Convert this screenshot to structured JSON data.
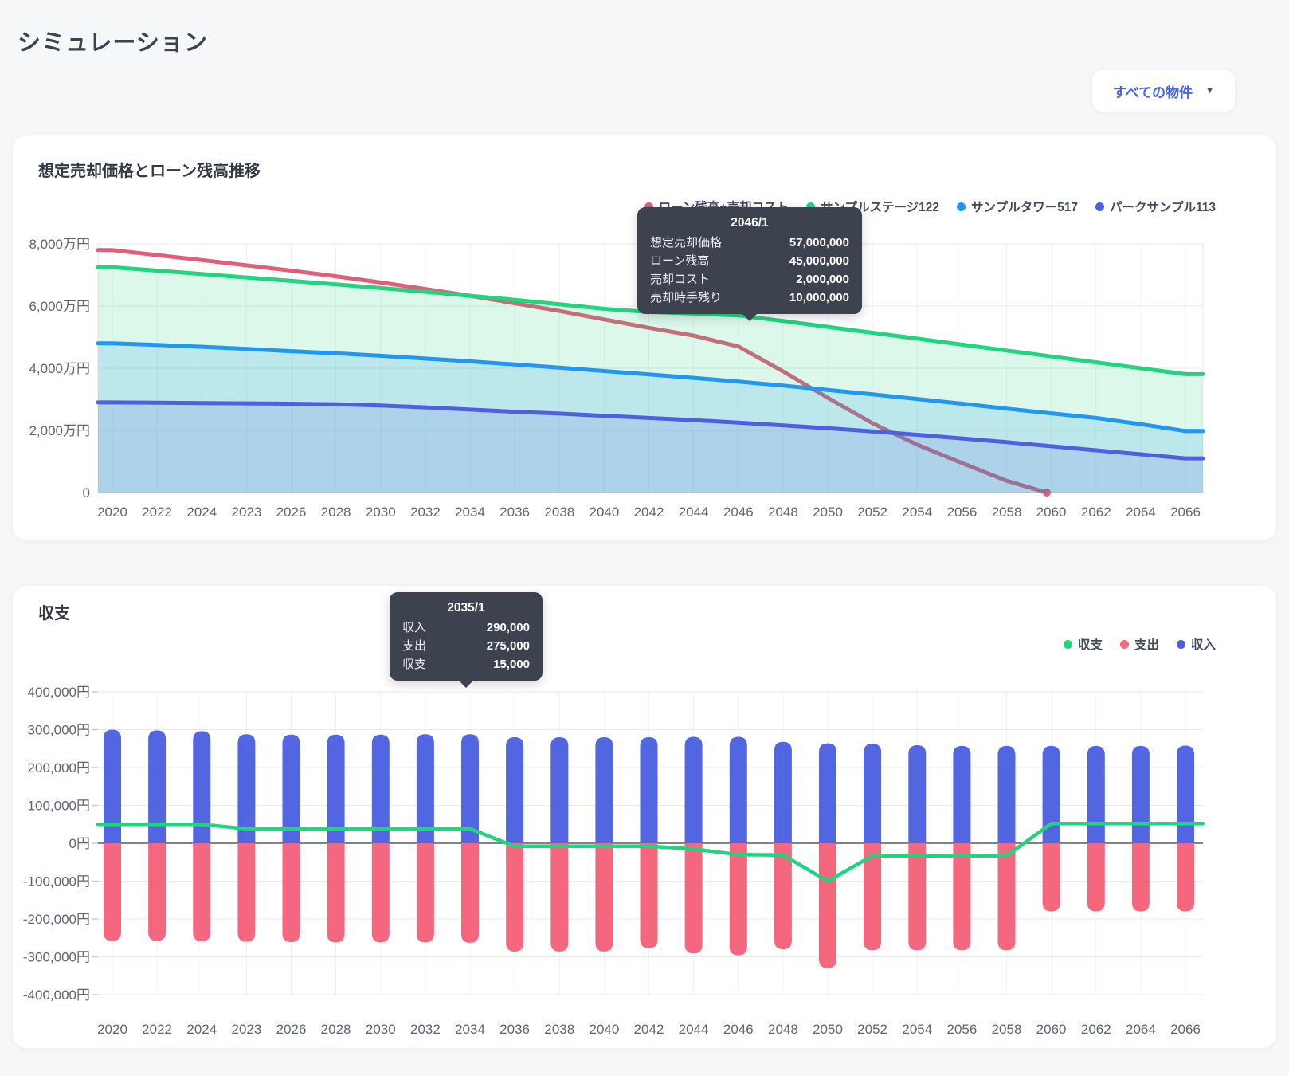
{
  "page": {
    "title": "シミュレーション"
  },
  "property_filter": {
    "label": "すべての物件",
    "caret_icon": "▼"
  },
  "colors": {
    "accent_blue": "#4565e8",
    "loan_line": "#e25d78",
    "green_series": "#22d47e",
    "lightblue_series": "#2196f3",
    "purple_series": "#4f5fe0",
    "income_bar": "#5266e2",
    "expense_bar": "#f5677f",
    "tooltip_bg": "#3c434f"
  },
  "chart_data": [
    {
      "type": "area",
      "title": "想定売却価格とローン残高推移",
      "unit": "万円",
      "grid": true,
      "legend_position": "top-right",
      "categories": [
        "2020",
        "2022",
        "2024",
        "2023",
        "2026",
        "2028",
        "2030",
        "2032",
        "2034",
        "2036",
        "2038",
        "2040",
        "2042",
        "2044",
        "2046",
        "2048",
        "2050",
        "2052",
        "2054",
        "2056",
        "2058",
        "2060",
        "2062",
        "2064",
        "2066"
      ],
      "ylim": [
        0,
        8000
      ],
      "y_ticks": [
        {
          "value": 8000,
          "label": "8,000万円"
        },
        {
          "value": 6000,
          "label": "6,000万円"
        },
        {
          "value": 4000,
          "label": "4,000万円"
        },
        {
          "value": 2000,
          "label": "2,000万円"
        },
        {
          "value": 0,
          "label": "0"
        }
      ],
      "legend": [
        {
          "label": "ローン残高+売却コスト",
          "color": "#e25d78"
        },
        {
          "label": "サンプルステージ122",
          "color": "#22d47e"
        },
        {
          "label": "サンプルタワー517",
          "color": "#2196f3"
        },
        {
          "label": "パークサンプル113",
          "color": "#4f5fe0"
        }
      ],
      "series": [
        {
          "name": "ローン残高+売却コスト",
          "kind": "line",
          "color": "#e25d78",
          "points": [
            [
              0,
              7800
            ],
            [
              1,
              7640
            ],
            [
              2,
              7480
            ],
            [
              3,
              7310
            ],
            [
              4,
              7140
            ],
            [
              5,
              6960
            ],
            [
              6,
              6760
            ],
            [
              7,
              6550
            ],
            [
              8,
              6330
            ],
            [
              9,
              6090
            ],
            [
              10,
              5840
            ],
            [
              11,
              5570
            ],
            [
              12,
              5300
            ],
            [
              13,
              5050
            ],
            [
              14,
              4700
            ],
            [
              15,
              3900
            ],
            [
              16,
              3050
            ],
            [
              17,
              2230
            ],
            [
              18,
              1540
            ],
            [
              19,
              950
            ],
            [
              20,
              380
            ],
            [
              20.9,
              0
            ]
          ]
        },
        {
          "name": "サンプルステージ122",
          "kind": "area-line",
          "color": "#22d47e",
          "fill": "rgba(34,212,126,0.16)",
          "values": [
            7250,
            7140,
            7030,
            6920,
            6810,
            6700,
            6580,
            6460,
            6330,
            6200,
            6060,
            5910,
            5810,
            5760,
            5700,
            5520,
            5330,
            5140,
            4950,
            4760,
            4570,
            4380,
            4190,
            4000,
            3810
          ]
        },
        {
          "name": "サンプルタワー517",
          "kind": "area-line",
          "color": "#2196f3",
          "fill": "rgba(33,150,243,0.16)",
          "values": [
            4800,
            4750,
            4690,
            4620,
            4550,
            4480,
            4400,
            4310,
            4220,
            4120,
            4020,
            3910,
            3800,
            3690,
            3570,
            3440,
            3300,
            3160,
            3010,
            2860,
            2700,
            2550,
            2400,
            2200,
            1980
          ]
        },
        {
          "name": "パークサンプル113",
          "kind": "area-line",
          "color": "#4f5fe0",
          "fill": "rgba(79,95,224,0.15)",
          "values": [
            2900,
            2890,
            2880,
            2870,
            2860,
            2840,
            2800,
            2740,
            2670,
            2600,
            2540,
            2470,
            2400,
            2330,
            2250,
            2160,
            2070,
            1970,
            1860,
            1740,
            1620,
            1490,
            1360,
            1230,
            1100
          ]
        }
      ],
      "tooltip": {
        "title": "2046/1",
        "rows": [
          {
            "label": "想定売却価格",
            "value": "57,000,000"
          },
          {
            "label": "ローン残高",
            "value": "45,000,000"
          },
          {
            "label": "売却コスト",
            "value": "2,000,000"
          },
          {
            "label": "売却時手残り",
            "value": "10,000,000"
          }
        ]
      }
    },
    {
      "type": "bar",
      "title": "収支",
      "unit": "円",
      "grid": true,
      "legend_position": "top-right",
      "categories": [
        "2020",
        "2022",
        "2024",
        "2023",
        "2026",
        "2028",
        "2030",
        "2032",
        "2034",
        "2036",
        "2038",
        "2040",
        "2042",
        "2044",
        "2046",
        "2048",
        "2050",
        "2052",
        "2054",
        "2056",
        "2058",
        "2060",
        "2062",
        "2064",
        "2066"
      ],
      "ylim": [
        -400000,
        400000
      ],
      "y_ticks": [
        {
          "value": 400000,
          "label": "400,000円"
        },
        {
          "value": 300000,
          "label": "300,000円"
        },
        {
          "value": 200000,
          "label": "200,000円"
        },
        {
          "value": 100000,
          "label": "100,000円"
        },
        {
          "value": 0,
          "label": "0円"
        },
        {
          "value": -100000,
          "label": "-100,000円"
        },
        {
          "value": -200000,
          "label": "-200,000円"
        },
        {
          "value": -300000,
          "label": "-300,000円"
        },
        {
          "value": -400000,
          "label": "-400,000円"
        }
      ],
      "legend": [
        {
          "label": "収支",
          "color": "#22d47e"
        },
        {
          "label": "支出",
          "color": "#f5677f"
        },
        {
          "label": "収入",
          "color": "#4c5ee0"
        }
      ],
      "series": [
        {
          "name": "収入",
          "kind": "bar",
          "color": "#5266e2",
          "values": [
            300000,
            298000,
            296000,
            288000,
            287000,
            287000,
            287000,
            288000,
            288000,
            280000,
            280000,
            280000,
            280000,
            281000,
            281000,
            268000,
            264000,
            263000,
            259000,
            257000,
            257000,
            257000,
            257000,
            257000,
            258000
          ]
        },
        {
          "name": "支出",
          "kind": "bar",
          "color": "#f5677f",
          "values": [
            -258000,
            -258000,
            -259000,
            -260000,
            -261000,
            -262000,
            -262000,
            -262000,
            -263000,
            -286000,
            -286000,
            -286000,
            -277000,
            -291000,
            -296000,
            -280000,
            -330000,
            -283000,
            -283000,
            -283000,
            -283000,
            -180000,
            -180000,
            -180000,
            -180000
          ]
        },
        {
          "name": "収支",
          "kind": "line",
          "color": "#22d47e",
          "values": [
            50000,
            50000,
            50000,
            38000,
            38000,
            38000,
            38000,
            38000,
            38000,
            -8000,
            -8000,
            -8000,
            -8000,
            -15000,
            -30000,
            -31000,
            -100000,
            -33000,
            -33000,
            -33000,
            -33000,
            52000,
            52000,
            52000,
            52000
          ]
        }
      ],
      "tooltip": {
        "title": "2035/1",
        "rows": [
          {
            "label": "収入",
            "value": "290,000"
          },
          {
            "label": "支出",
            "value": "275,000"
          },
          {
            "label": "収支",
            "value": "15,000"
          }
        ]
      }
    }
  ]
}
